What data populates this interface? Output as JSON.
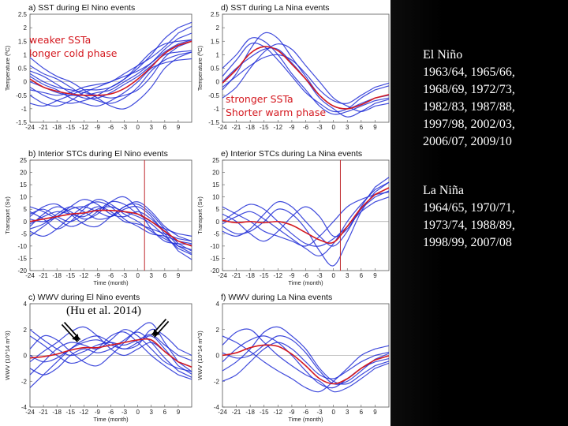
{
  "annotations": {
    "weak": "weaker SSTa\nlonger cold phase",
    "strong": "stronger SSTa\nShorter warm phase",
    "citation": "(Hu et al. 2014)"
  },
  "side_text": {
    "el_nino": "El Niño\n1963/64, 1965/66,\n1968/69, 1972/73,\n1982/83, 1987/88,\n1997/98, 2002/03,\n2006/07, 2009/10",
    "la_nina": "La Niña\n1964/65, 1970/71,\n1973/74, 1988/89,\n1998/99, 2007/08"
  },
  "colors": {
    "events": "#1f2bd6",
    "composite": "#d4181f",
    "marker": "#c0282c",
    "side_bg": "#000000"
  },
  "chart_data": [
    {
      "type": "line",
      "title": "a) SST during El Nino events",
      "xlabel": "",
      "ylabel": "Temperature (ºC)",
      "x_ticks": [
        -24,
        -21,
        -18,
        -15,
        -12,
        -9,
        -6,
        -3,
        0,
        3,
        6,
        9
      ],
      "y_ticks": [
        "2.5",
        "2",
        "1.5",
        "1",
        "0.5",
        "0",
        "-0.5",
        "-1",
        "-1.5"
      ],
      "ylim": [
        -1.5,
        2.5
      ],
      "series": [
        {
          "values": [
            0.3,
            0.0,
            -0.2,
            -0.3,
            -0.4,
            -0.5,
            -0.6,
            -0.5,
            -0.3,
            0.2,
            0.9,
            1.3
          ]
        },
        {
          "values": [
            -0.2,
            -0.5,
            -0.7,
            -0.8,
            -0.7,
            -0.5,
            -0.2,
            0.1,
            0.5,
            1.0,
            1.6,
            2.0
          ]
        },
        {
          "values": [
            0.6,
            0.3,
            0.1,
            -0.2,
            -0.5,
            -0.7,
            -0.8,
            -0.6,
            -0.2,
            0.4,
            0.8,
            1.0
          ]
        },
        {
          "values": [
            -0.5,
            -0.8,
            -0.9,
            -0.7,
            -0.4,
            -0.2,
            0.0,
            0.2,
            0.4,
            0.7,
            1.1,
            1.4
          ]
        },
        {
          "values": [
            0.9,
            0.5,
            0.2,
            0.0,
            -0.3,
            -0.6,
            -0.9,
            -1.0,
            -0.7,
            -0.2,
            0.5,
            0.9
          ]
        },
        {
          "values": [
            0.0,
            -0.2,
            -0.4,
            -0.5,
            -0.5,
            -0.4,
            -0.3,
            0.0,
            0.3,
            0.7,
            1.2,
            1.6
          ]
        },
        {
          "values": [
            0.4,
            0.2,
            -0.1,
            -0.4,
            -0.6,
            -0.6,
            -0.4,
            -0.1,
            0.2,
            0.6,
            1.0,
            1.1
          ]
        },
        {
          "values": [
            -0.8,
            -0.9,
            -0.7,
            -0.5,
            -0.3,
            -0.3,
            -0.2,
            0.1,
            0.6,
            1.1,
            1.4,
            1.5
          ]
        },
        {
          "values": [
            0.2,
            -0.1,
            -0.3,
            -0.6,
            -0.8,
            -0.9,
            -0.7,
            -0.4,
            0.0,
            0.5,
            0.7,
            0.8
          ]
        },
        {
          "values": [
            -0.3,
            -0.4,
            -0.5,
            -0.4,
            -0.2,
            -0.1,
            0.0,
            0.3,
            0.6,
            0.9,
            1.3,
            1.8
          ]
        }
      ],
      "composite": [
        0.1,
        -0.2,
        -0.35,
        -0.45,
        -0.5,
        -0.5,
        -0.45,
        -0.25,
        0.1,
        0.55,
        1.05,
        1.35
      ],
      "marker_x": null
    },
    {
      "type": "line",
      "title": "d) SST during La Nina events",
      "xlabel": "",
      "ylabel": "Temperature (ºC)",
      "x_ticks": [
        -24,
        -21,
        -18,
        -15,
        -12,
        -9,
        -6,
        -3,
        0,
        3,
        6,
        9
      ],
      "y_ticks": [
        "2.5",
        "2",
        "1.5",
        "1",
        "0.5",
        "0",
        "-0.5",
        "-1",
        "-1.5"
      ],
      "ylim": [
        -1.5,
        2.5
      ],
      "series": [
        {
          "values": [
            -0.3,
            0.3,
            1.2,
            1.8,
            1.6,
            0.9,
            0.2,
            -0.5,
            -0.9,
            -1.0,
            -0.8,
            -0.6
          ]
        },
        {
          "values": [
            0.2,
            0.8,
            1.4,
            1.3,
            0.8,
            0.2,
            -0.4,
            -0.8,
            -1.1,
            -1.0,
            -0.6,
            -0.3
          ]
        },
        {
          "values": [
            -0.6,
            -0.2,
            0.5,
            1.1,
            1.4,
            1.2,
            0.6,
            0.0,
            -0.6,
            -0.9,
            -1.1,
            -0.9
          ]
        },
        {
          "values": [
            0.5,
            1.0,
            1.6,
            1.5,
            1.0,
            0.3,
            -0.3,
            -0.9,
            -1.2,
            -1.1,
            -0.9,
            -0.7
          ]
        },
        {
          "values": [
            -0.2,
            0.2,
            0.6,
            0.9,
            1.0,
            0.8,
            0.3,
            -0.3,
            -0.7,
            -0.8,
            -0.5,
            -0.2
          ]
        },
        {
          "values": [
            0.0,
            0.5,
            0.9,
            1.2,
            1.2,
            0.7,
            0.1,
            -0.6,
            -1.0,
            -1.3,
            -1.1,
            -0.8
          ]
        }
      ],
      "composite": [
        -0.05,
        0.45,
        1.05,
        1.3,
        1.15,
        0.65,
        0.1,
        -0.5,
        -0.9,
        -1.0,
        -0.85,
        -0.6
      ],
      "marker_x": null
    },
    {
      "type": "line",
      "title": "b) Interior STCs during El Nino events",
      "xlabel": "Time (month)",
      "ylabel": "Transport (Sv)",
      "x_ticks": [
        -24,
        -21,
        -18,
        -15,
        -12,
        -9,
        -6,
        -3,
        0,
        3,
        6,
        9
      ],
      "y_ticks": [
        "25",
        "20",
        "15",
        "10",
        "5",
        "0",
        "-5",
        "-10",
        "-15",
        "-20"
      ],
      "ylim": [
        -20,
        25
      ],
      "series": [
        {
          "values": [
            -2,
            3,
            6,
            4,
            1,
            3,
            8,
            10,
            5,
            -3,
            -8,
            -9
          ]
        },
        {
          "values": [
            4,
            1,
            -3,
            0,
            5,
            9,
            7,
            3,
            0,
            -4,
            -7,
            -10
          ]
        },
        {
          "values": [
            -6,
            -2,
            2,
            5,
            6,
            4,
            2,
            5,
            6,
            2,
            -5,
            -12
          ]
        },
        {
          "values": [
            2,
            6,
            7,
            3,
            -1,
            -2,
            2,
            6,
            8,
            4,
            -2,
            -6
          ]
        },
        {
          "values": [
            -4,
            -6,
            -3,
            2,
            6,
            8,
            6,
            1,
            -2,
            -5,
            -6,
            -8
          ]
        },
        {
          "values": [
            1,
            0,
            2,
            6,
            9,
            7,
            3,
            2,
            4,
            1,
            -4,
            -10
          ]
        },
        {
          "values": [
            6,
            4,
            1,
            -2,
            0,
            4,
            8,
            7,
            3,
            0,
            -3,
            -5
          ]
        },
        {
          "values": [
            -1,
            2,
            4,
            3,
            2,
            5,
            6,
            4,
            2,
            -1,
            -6,
            -11
          ]
        },
        {
          "values": [
            3,
            5,
            2,
            0,
            3,
            6,
            4,
            0,
            -1,
            -3,
            -5,
            -7
          ]
        },
        {
          "values": [
            -3,
            -1,
            3,
            6,
            4,
            1,
            2,
            6,
            7,
            3,
            -3,
            -9
          ]
        }
      ],
      "composite": [
        0,
        1,
        2,
        3,
        3.5,
        4.5,
        4.5,
        4,
        3,
        0,
        -4,
        -8
      ],
      "marker_x": 1.5
    },
    {
      "type": "line",
      "title": "e) Interior STCs during La Nina events",
      "xlabel": "Time (month)",
      "ylabel": "Transport (Sv)",
      "x_ticks": [
        -24,
        -21,
        -18,
        -15,
        -12,
        -9,
        -6,
        -3,
        0,
        3,
        6,
        9
      ],
      "y_ticks": [
        "25",
        "20",
        "15",
        "10",
        "5",
        "0",
        "-5",
        "-10",
        "-15",
        "-20"
      ],
      "ylim": [
        -20,
        25
      ],
      "series": [
        {
          "values": [
            -2,
            -5,
            -4,
            0,
            5,
            3,
            -3,
            -12,
            -18,
            -8,
            4,
            12
          ]
        },
        {
          "values": [
            6,
            3,
            0,
            -4,
            -6,
            -8,
            -10,
            -6,
            0,
            6,
            9,
            11
          ]
        },
        {
          "values": [
            -1,
            2,
            4,
            1,
            -3,
            -7,
            -11,
            -14,
            -9,
            0,
            7,
            13
          ]
        },
        {
          "values": [
            3,
            0,
            -5,
            -8,
            -4,
            2,
            6,
            2,
            -6,
            -3,
            5,
            10
          ]
        },
        {
          "values": [
            0,
            4,
            7,
            5,
            0,
            -5,
            -9,
            -10,
            -7,
            -2,
            4,
            8
          ]
        },
        {
          "values": [
            -4,
            -6,
            -3,
            3,
            8,
            6,
            0,
            -6,
            -10,
            -4,
            6,
            14
          ]
        }
      ],
      "composite": [
        0.5,
        -0.5,
        0,
        -0.5,
        0,
        -1.5,
        -4.5,
        -7.5,
        -8.5,
        -2,
        5.5,
        11
      ],
      "marker_x": 1.5
    },
    {
      "type": "line",
      "title": "c) WWV during El Nino events",
      "xlabel": "Time (month)",
      "ylabel": "WWV (10^14 m^3)",
      "x_ticks": [
        -24,
        -21,
        -18,
        -15,
        -12,
        -9,
        -6,
        -3,
        0,
        3,
        6,
        9
      ],
      "y_ticks": [
        "4",
        "2",
        "0",
        "-2",
        "-4"
      ],
      "ylim": [
        -4,
        4
      ],
      "series": [
        {
          "values": [
            -1.5,
            -0.5,
            0.5,
            1.0,
            0.8,
            0.5,
            1.2,
            2.0,
            1.5,
            0.5,
            -0.5,
            -1.0
          ]
        },
        {
          "values": [
            0.5,
            1.5,
            1.2,
            0.3,
            -0.5,
            -0.8,
            0.0,
            1.0,
            2.0,
            2.5,
            1.0,
            -0.5
          ]
        },
        {
          "values": [
            -2.5,
            -1.5,
            -0.5,
            0.5,
            1.2,
            1.5,
            1.0,
            0.5,
            1.0,
            1.5,
            0.5,
            -0.8
          ]
        },
        {
          "values": [
            1.5,
            0.8,
            0.0,
            -0.6,
            -0.3,
            0.5,
            1.5,
            1.8,
            1.0,
            0.0,
            -0.8,
            -1.5
          ]
        },
        {
          "values": [
            -0.5,
            0.3,
            1.0,
            1.8,
            2.2,
            1.5,
            0.5,
            0.0,
            0.5,
            1.0,
            0.3,
            -0.5
          ]
        },
        {
          "values": [
            2.0,
            1.2,
            0.5,
            0.0,
            0.3,
            0.8,
            1.0,
            0.8,
            1.2,
            1.6,
            0.8,
            0.0
          ]
        },
        {
          "values": [
            -1.0,
            -1.5,
            -1.0,
            0.0,
            0.5,
            0.2,
            0.5,
            1.2,
            1.8,
            1.0,
            -0.2,
            -1.2
          ]
        },
        {
          "values": [
            0.0,
            -0.5,
            -0.2,
            0.5,
            1.0,
            1.2,
            0.8,
            0.5,
            0.8,
            2.0,
            1.5,
            0.5
          ]
        }
      ],
      "composite": [
        -0.2,
        -0.1,
        0.1,
        0.4,
        0.6,
        0.6,
        0.8,
        1.0,
        1.2,
        1.2,
        0.3,
        -0.5
      ],
      "marker_x": null
    },
    {
      "type": "line",
      "title": "f) WWV during La Nina events",
      "xlabel": "Time (month)",
      "ylabel": "WWV (10^14 m^3)",
      "x_ticks": [
        -24,
        -21,
        -18,
        -15,
        -12,
        -9,
        -6,
        -3,
        0,
        3,
        6,
        9
      ],
      "y_ticks": [
        "4",
        "2",
        "0",
        "-2",
        "-4"
      ],
      "ylim": [
        -4,
        4
      ],
      "series": [
        {
          "values": [
            -0.5,
            0.5,
            1.2,
            1.5,
            1.0,
            0.0,
            -1.2,
            -2.2,
            -2.5,
            -1.8,
            -1.0,
            -0.5
          ]
        },
        {
          "values": [
            1.5,
            1.0,
            0.3,
            -0.5,
            -1.2,
            -1.8,
            -2.5,
            -2.8,
            -2.0,
            -1.0,
            0.0,
            0.5
          ]
        },
        {
          "values": [
            -1.2,
            -0.5,
            0.5,
            1.8,
            2.2,
            1.5,
            0.5,
            -1.0,
            -2.0,
            -2.2,
            -1.5,
            -0.8
          ]
        },
        {
          "values": [
            0.8,
            1.8,
            2.0,
            1.0,
            0.0,
            -0.8,
            -1.5,
            -2.0,
            -2.8,
            -2.5,
            -1.8,
            -1.0
          ]
        },
        {
          "values": [
            -2.0,
            -1.5,
            -0.5,
            0.5,
            1.0,
            0.5,
            -0.5,
            -1.5,
            -1.8,
            -1.2,
            -0.5,
            0.0
          ]
        },
        {
          "values": [
            0.2,
            -0.2,
            0.0,
            0.8,
            1.5,
            1.2,
            0.2,
            -1.2,
            -2.2,
            -2.0,
            -1.2,
            -0.3
          ]
        }
      ],
      "composite": [
        0,
        0.2,
        0.6,
        0.8,
        0.7,
        0.1,
        -0.8,
        -1.8,
        -2.2,
        -1.8,
        -1.0,
        -0.35
      ],
      "marker_x": null
    }
  ]
}
